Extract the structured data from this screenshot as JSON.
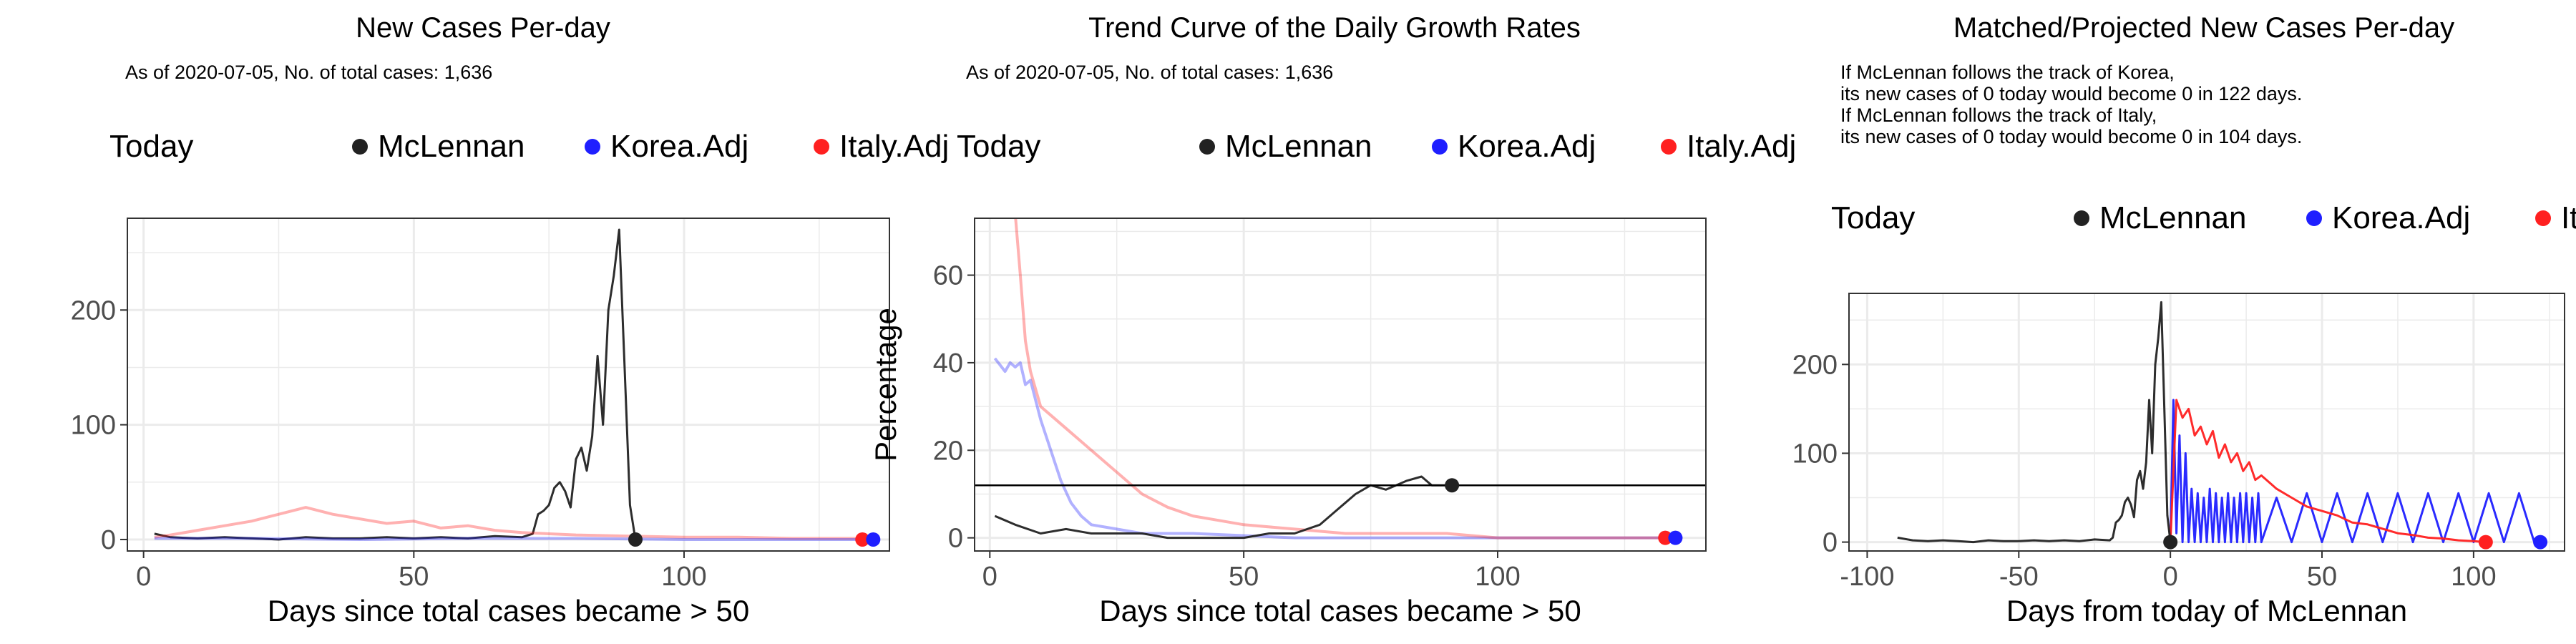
{
  "colors": {
    "mclennan": "#222222",
    "korea": "#1f1fff",
    "italy": "#ff2020",
    "grid": "#ebebeb",
    "panel_border": "#333333"
  },
  "chart_data": [
    {
      "type": "line",
      "title": "New Cases Per-day",
      "subtitle": [
        "As of 2020-07-05, No. of total cases: 1,636"
      ],
      "xlabel": "Days since total cases became > 50",
      "ylabel": "",
      "xlim": [
        -3,
        138
      ],
      "ylim": [
        -10,
        280
      ],
      "xticks": [
        0,
        50,
        100
      ],
      "yticks": [
        0,
        100,
        200
      ],
      "grid": true,
      "legend": {
        "position": "top",
        "title": "Today",
        "entries": [
          "McLennan",
          "Korea.Adj",
          "Italy.Adj"
        ]
      },
      "series": [
        {
          "name": "McLennan",
          "color": "#222222",
          "opacity": 0.95,
          "width": 3,
          "x": [
            2,
            5,
            10,
            15,
            20,
            25,
            30,
            35,
            40,
            45,
            50,
            55,
            60,
            65,
            70,
            72,
            73,
            74,
            75,
            76,
            77,
            78,
            79,
            80,
            81,
            82,
            83,
            84,
            85,
            86,
            87,
            88,
            89,
            90,
            91
          ],
          "y": [
            5,
            2,
            1,
            2,
            1,
            0,
            2,
            1,
            1,
            2,
            1,
            2,
            1,
            3,
            2,
            5,
            22,
            25,
            30,
            45,
            50,
            42,
            28,
            70,
            80,
            60,
            90,
            160,
            100,
            200,
            230,
            270,
            150,
            30,
            0
          ]
        },
        {
          "name": "Italy.Adj",
          "color": "#ff2020",
          "opacity": 0.35,
          "width": 4,
          "x": [
            2,
            5,
            10,
            15,
            20,
            25,
            30,
            35,
            40,
            45,
            50,
            55,
            60,
            65,
            70,
            80,
            90,
            100,
            110,
            120,
            133
          ],
          "y": [
            2,
            4,
            8,
            12,
            16,
            22,
            28,
            22,
            18,
            14,
            16,
            10,
            12,
            8,
            6,
            4,
            3,
            2,
            2,
            1,
            1
          ]
        },
        {
          "name": "Korea.Adj",
          "color": "#1f1fff",
          "opacity": 0.35,
          "width": 4,
          "x": [
            2,
            20,
            40,
            60,
            80,
            100,
            120,
            135
          ],
          "y": [
            1,
            1,
            0,
            1,
            1,
            0,
            0,
            0
          ]
        }
      ],
      "today_points": [
        {
          "name": "McLennan",
          "x": 91,
          "y": 0
        },
        {
          "name": "Italy.Adj",
          "x": 133,
          "y": 0
        },
        {
          "name": "Korea.Adj",
          "x": 135,
          "y": 0
        }
      ]
    },
    {
      "type": "line",
      "title": "Trend Curve of the Daily Growth Rates",
      "subtitle": [
        "As of 2020-07-05, No. of total cases: 1,636"
      ],
      "xlabel": "Days since total cases became > 50",
      "ylabel": "Percentage",
      "xlim": [
        -3,
        141
      ],
      "ylim": [
        -3,
        73
      ],
      "xticks": [
        0,
        50,
        100
      ],
      "yticks": [
        0,
        20,
        40,
        60
      ],
      "grid": true,
      "hline": 12,
      "legend": {
        "position": "top",
        "title": "Today",
        "entries": [
          "McLennan",
          "Korea.Adj",
          "Italy.Adj"
        ]
      },
      "series": [
        {
          "name": "Korea.Adj",
          "color": "#1f1fff",
          "opacity": 0.35,
          "width": 4,
          "x": [
            1,
            3,
            4,
            5,
            6,
            7,
            8,
            10,
            12,
            14,
            16,
            18,
            20,
            25,
            30,
            40,
            60,
            80,
            100,
            120,
            135
          ],
          "y": [
            41,
            38,
            40,
            39,
            40,
            35,
            36,
            27,
            20,
            13,
            8,
            5,
            3,
            2,
            1,
            1,
            0,
            0,
            0,
            0,
            0
          ]
        },
        {
          "name": "Italy.Adj",
          "color": "#ff2020",
          "opacity": 0.35,
          "width": 4,
          "x": [
            5,
            6,
            7,
            8,
            10,
            12,
            15,
            18,
            20,
            25,
            30,
            35,
            40,
            45,
            50,
            60,
            70,
            80,
            90,
            100,
            110,
            120,
            133
          ],
          "y": [
            74,
            60,
            45,
            38,
            30,
            28,
            25,
            22,
            20,
            15,
            10,
            7,
            5,
            4,
            3,
            2,
            1,
            1,
            1,
            0,
            0,
            0,
            0
          ]
        },
        {
          "name": "McLennan",
          "color": "#222222",
          "opacity": 0.95,
          "width": 3,
          "x": [
            1,
            5,
            10,
            15,
            20,
            25,
            30,
            35,
            40,
            45,
            50,
            55,
            60,
            65,
            68,
            70,
            72,
            75,
            78,
            80,
            82,
            85,
            87,
            90,
            91
          ],
          "y": [
            5,
            3,
            1,
            2,
            1,
            1,
            1,
            0,
            0,
            0,
            0,
            1,
            1,
            3,
            6,
            8,
            10,
            12,
            11,
            12,
            13,
            14,
            12,
            12,
            12
          ]
        }
      ],
      "today_points": [
        {
          "name": "McLennan",
          "x": 91,
          "y": 12
        },
        {
          "name": "Italy.Adj",
          "x": 133,
          "y": 0
        },
        {
          "name": "Korea.Adj",
          "x": 135,
          "y": 0
        }
      ]
    },
    {
      "type": "line",
      "title": "Matched/Projected New Cases Per-day",
      "subtitle": [
        "If McLennan follows the track of Korea,",
        "its new cases of 0 today would become 0 in 122 days.",
        "If McLennan follows the track of Italy,",
        "its new cases of 0 today would become 0 in 104 days."
      ],
      "xlabel": "Days from today of McLennan",
      "ylabel": "",
      "xlim": [
        -106,
        130
      ],
      "ylim": [
        -10,
        280
      ],
      "xticks": [
        -100,
        -50,
        0,
        50,
        100
      ],
      "yticks": [
        0,
        100,
        200
      ],
      "grid": true,
      "legend": {
        "position": "top",
        "title": "Today",
        "entries": [
          "McLennan",
          "Korea.Adj",
          "Italy.Adj"
        ]
      },
      "series": [
        {
          "name": "Korea.Adj",
          "color": "#1f1fff",
          "opacity": 0.95,
          "width": 3,
          "x": [
            0,
            1,
            2,
            3,
            4,
            5,
            6,
            7,
            8,
            9,
            10,
            11,
            12,
            13,
            14,
            15,
            16,
            17,
            18,
            19,
            20,
            21,
            22,
            23,
            24,
            25,
            26,
            27,
            28,
            29,
            30,
            35,
            40,
            45,
            50,
            55,
            60,
            65,
            70,
            75,
            80,
            85,
            90,
            95,
            100,
            105,
            110,
            115,
            120,
            122
          ],
          "y": [
            0,
            160,
            10,
            120,
            0,
            100,
            0,
            60,
            0,
            55,
            0,
            50,
            0,
            60,
            0,
            55,
            0,
            50,
            0,
            55,
            0,
            50,
            0,
            55,
            0,
            55,
            0,
            50,
            0,
            55,
            0,
            50,
            0,
            55,
            0,
            55,
            0,
            55,
            0,
            55,
            0,
            55,
            0,
            55,
            0,
            55,
            0,
            55,
            0,
            0
          ]
        },
        {
          "name": "Italy.Adj",
          "color": "#ff2020",
          "opacity": 0.95,
          "width": 3,
          "x": [
            0,
            2,
            4,
            6,
            8,
            10,
            12,
            14,
            16,
            18,
            20,
            22,
            24,
            26,
            28,
            30,
            35,
            40,
            45,
            50,
            55,
            60,
            65,
            70,
            75,
            80,
            85,
            90,
            95,
            100,
            104
          ],
          "y": [
            0,
            160,
            140,
            150,
            120,
            130,
            110,
            125,
            95,
            110,
            90,
            100,
            80,
            90,
            70,
            75,
            60,
            50,
            40,
            35,
            30,
            22,
            20,
            15,
            10,
            8,
            5,
            4,
            2,
            1,
            0
          ]
        },
        {
          "name": "McLennan",
          "color": "#222222",
          "opacity": 0.95,
          "width": 3,
          "x": [
            -90,
            -85,
            -80,
            -75,
            -70,
            -65,
            -60,
            -55,
            -50,
            -45,
            -40,
            -35,
            -30,
            -25,
            -20,
            -19,
            -18,
            -17,
            -16,
            -15,
            -14,
            -13,
            -12,
            -11,
            -10,
            -9,
            -8,
            -7,
            -6,
            -5,
            -4,
            -3,
            -2,
            -1,
            0
          ],
          "y": [
            5,
            2,
            1,
            2,
            1,
            0,
            2,
            1,
            1,
            2,
            1,
            2,
            1,
            3,
            2,
            5,
            22,
            25,
            30,
            45,
            50,
            42,
            28,
            70,
            80,
            60,
            90,
            160,
            100,
            200,
            230,
            270,
            150,
            30,
            0
          ]
        }
      ],
      "today_points": [
        {
          "name": "McLennan",
          "x": 0,
          "y": 0
        },
        {
          "name": "Italy.Adj",
          "x": 104,
          "y": 0
        },
        {
          "name": "Korea.Adj",
          "x": 122,
          "y": 0
        }
      ]
    }
  ]
}
